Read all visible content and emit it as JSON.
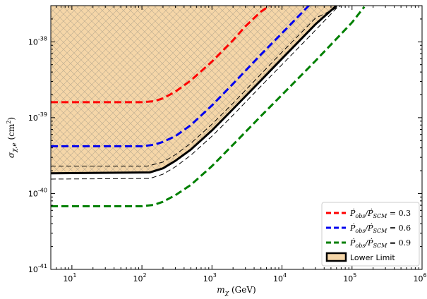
{
  "chart_data": {
    "type": "line",
    "xscale": "log",
    "yscale": "log",
    "xlim": [
      5,
      1000000
    ],
    "ylim": [
      1e-41,
      3e-38
    ],
    "xlabel": "m_χ (GeV)",
    "ylabel": "σ_χ,e (cm²)",
    "x_ticks": [
      {
        "value": 10,
        "base": "10",
        "exp": "1"
      },
      {
        "value": 100,
        "base": "10",
        "exp": "2"
      },
      {
        "value": 1000,
        "base": "10",
        "exp": "3"
      },
      {
        "value": 10000,
        "base": "10",
        "exp": "4"
      },
      {
        "value": 100000,
        "base": "10",
        "exp": "5"
      },
      {
        "value": 1000000,
        "base": "10",
        "exp": "6"
      }
    ],
    "y_ticks": [
      {
        "value": 1e-41,
        "base": "10",
        "exp": "-41"
      },
      {
        "value": 1e-40,
        "base": "10",
        "exp": "-40"
      },
      {
        "value": 1e-39,
        "base": "10",
        "exp": "-39"
      },
      {
        "value": 1e-38,
        "base": "10",
        "exp": "-38"
      }
    ],
    "series": [
      {
        "name": "Ṗobs/ṖSCM = 0.3",
        "color": "#ff0000",
        "style": "dashed",
        "width": 3,
        "x": [
          5,
          100,
          150,
          200,
          300,
          500,
          1000,
          2000,
          3000,
          5000,
          7000
        ],
        "y": [
          1.6e-39,
          1.6e-39,
          1.65e-39,
          1.8e-39,
          2.2e-39,
          3.1e-39,
          5.5e-39,
          1.05e-38,
          1.6e-38,
          2.5e-38,
          3.1e-38
        ]
      },
      {
        "name": "Ṗobs/ṖSCM = 0.6",
        "color": "#0000ee",
        "style": "dashed",
        "width": 3,
        "x": [
          5,
          100,
          150,
          200,
          300,
          500,
          1000,
          2000,
          5000,
          10000,
          25000
        ],
        "y": [
          4.2e-40,
          4.2e-40,
          4.4e-40,
          4.8e-40,
          5.7e-40,
          8e-40,
          1.45e-39,
          2.8e-39,
          6.8e-39,
          1.3e-38,
          3.1e-38
        ]
      },
      {
        "name": "Ṗobs/ṖSCM = 0.9",
        "color": "#008000",
        "style": "dashed",
        "width": 3,
        "x": [
          5,
          100,
          150,
          200,
          300,
          500,
          1000,
          2000,
          5000,
          10000,
          30000,
          100000,
          150000
        ],
        "y": [
          6.8e-41,
          6.8e-41,
          7.1e-41,
          7.8e-41,
          9.5e-41,
          1.3e-40,
          2.3e-40,
          4.4e-40,
          1.05e-39,
          2e-39,
          5.6e-39,
          1.8e-38,
          2.9e-38
        ]
      },
      {
        "name": "Lower Limit",
        "color": "#000000",
        "style": "solid",
        "width": 3,
        "fill": "#f5d6a8",
        "x": [
          5,
          130,
          200,
          300,
          500,
          1000,
          2000,
          5000,
          10000,
          30000,
          60000
        ],
        "y": [
          1.85e-40,
          1.9e-40,
          2.15e-40,
          2.7e-40,
          3.8e-40,
          6.8e-40,
          1.3e-39,
          3.1e-39,
          6e-39,
          1.7e-38,
          3e-38
        ]
      },
      {
        "name": "",
        "color": "#000000",
        "style": "dashed",
        "width": 1,
        "x": [
          5,
          120,
          200,
          300,
          500,
          1000,
          2000,
          5000,
          10000,
          30000,
          70000
        ],
        "y": [
          2.3e-40,
          2.3e-40,
          2.6e-40,
          3.25e-40,
          4.6e-40,
          8.2e-40,
          1.55e-39,
          3.75e-39,
          7.3e-39,
          2.05e-38,
          3e-38
        ]
      },
      {
        "name": "",
        "color": "#000000",
        "style": "dashed",
        "width": 1,
        "x": [
          5,
          130,
          200,
          300,
          500,
          1000,
          2000,
          5000,
          10000,
          30000,
          65000
        ],
        "y": [
          1.55e-40,
          1.58e-40,
          1.8e-40,
          2.25e-40,
          3.2e-40,
          5.7e-40,
          1.08e-39,
          2.6e-39,
          5e-39,
          1.42e-38,
          3e-38
        ]
      }
    ],
    "legend": {
      "position": "bottom-right",
      "entries": [
        {
          "prefix": "Ṗ",
          "sub1": "obs",
          "mid": "/Ṗ",
          "sub2": "SCM",
          "suffix": " = 0.3",
          "color": "#ff0000",
          "kind": "dashed"
        },
        {
          "prefix": "Ṗ",
          "sub1": "obs",
          "mid": "/Ṗ",
          "sub2": "SCM",
          "suffix": " = 0.6",
          "color": "#0000ee",
          "kind": "dashed"
        },
        {
          "prefix": "Ṗ",
          "sub1": "obs",
          "mid": "/Ṗ",
          "sub2": "SCM",
          "suffix": " = 0.9",
          "color": "#008000",
          "kind": "dashed"
        },
        {
          "label": "Lower Limit",
          "color": "#f5d6a8",
          "kind": "patch"
        }
      ]
    },
    "grid": false
  }
}
